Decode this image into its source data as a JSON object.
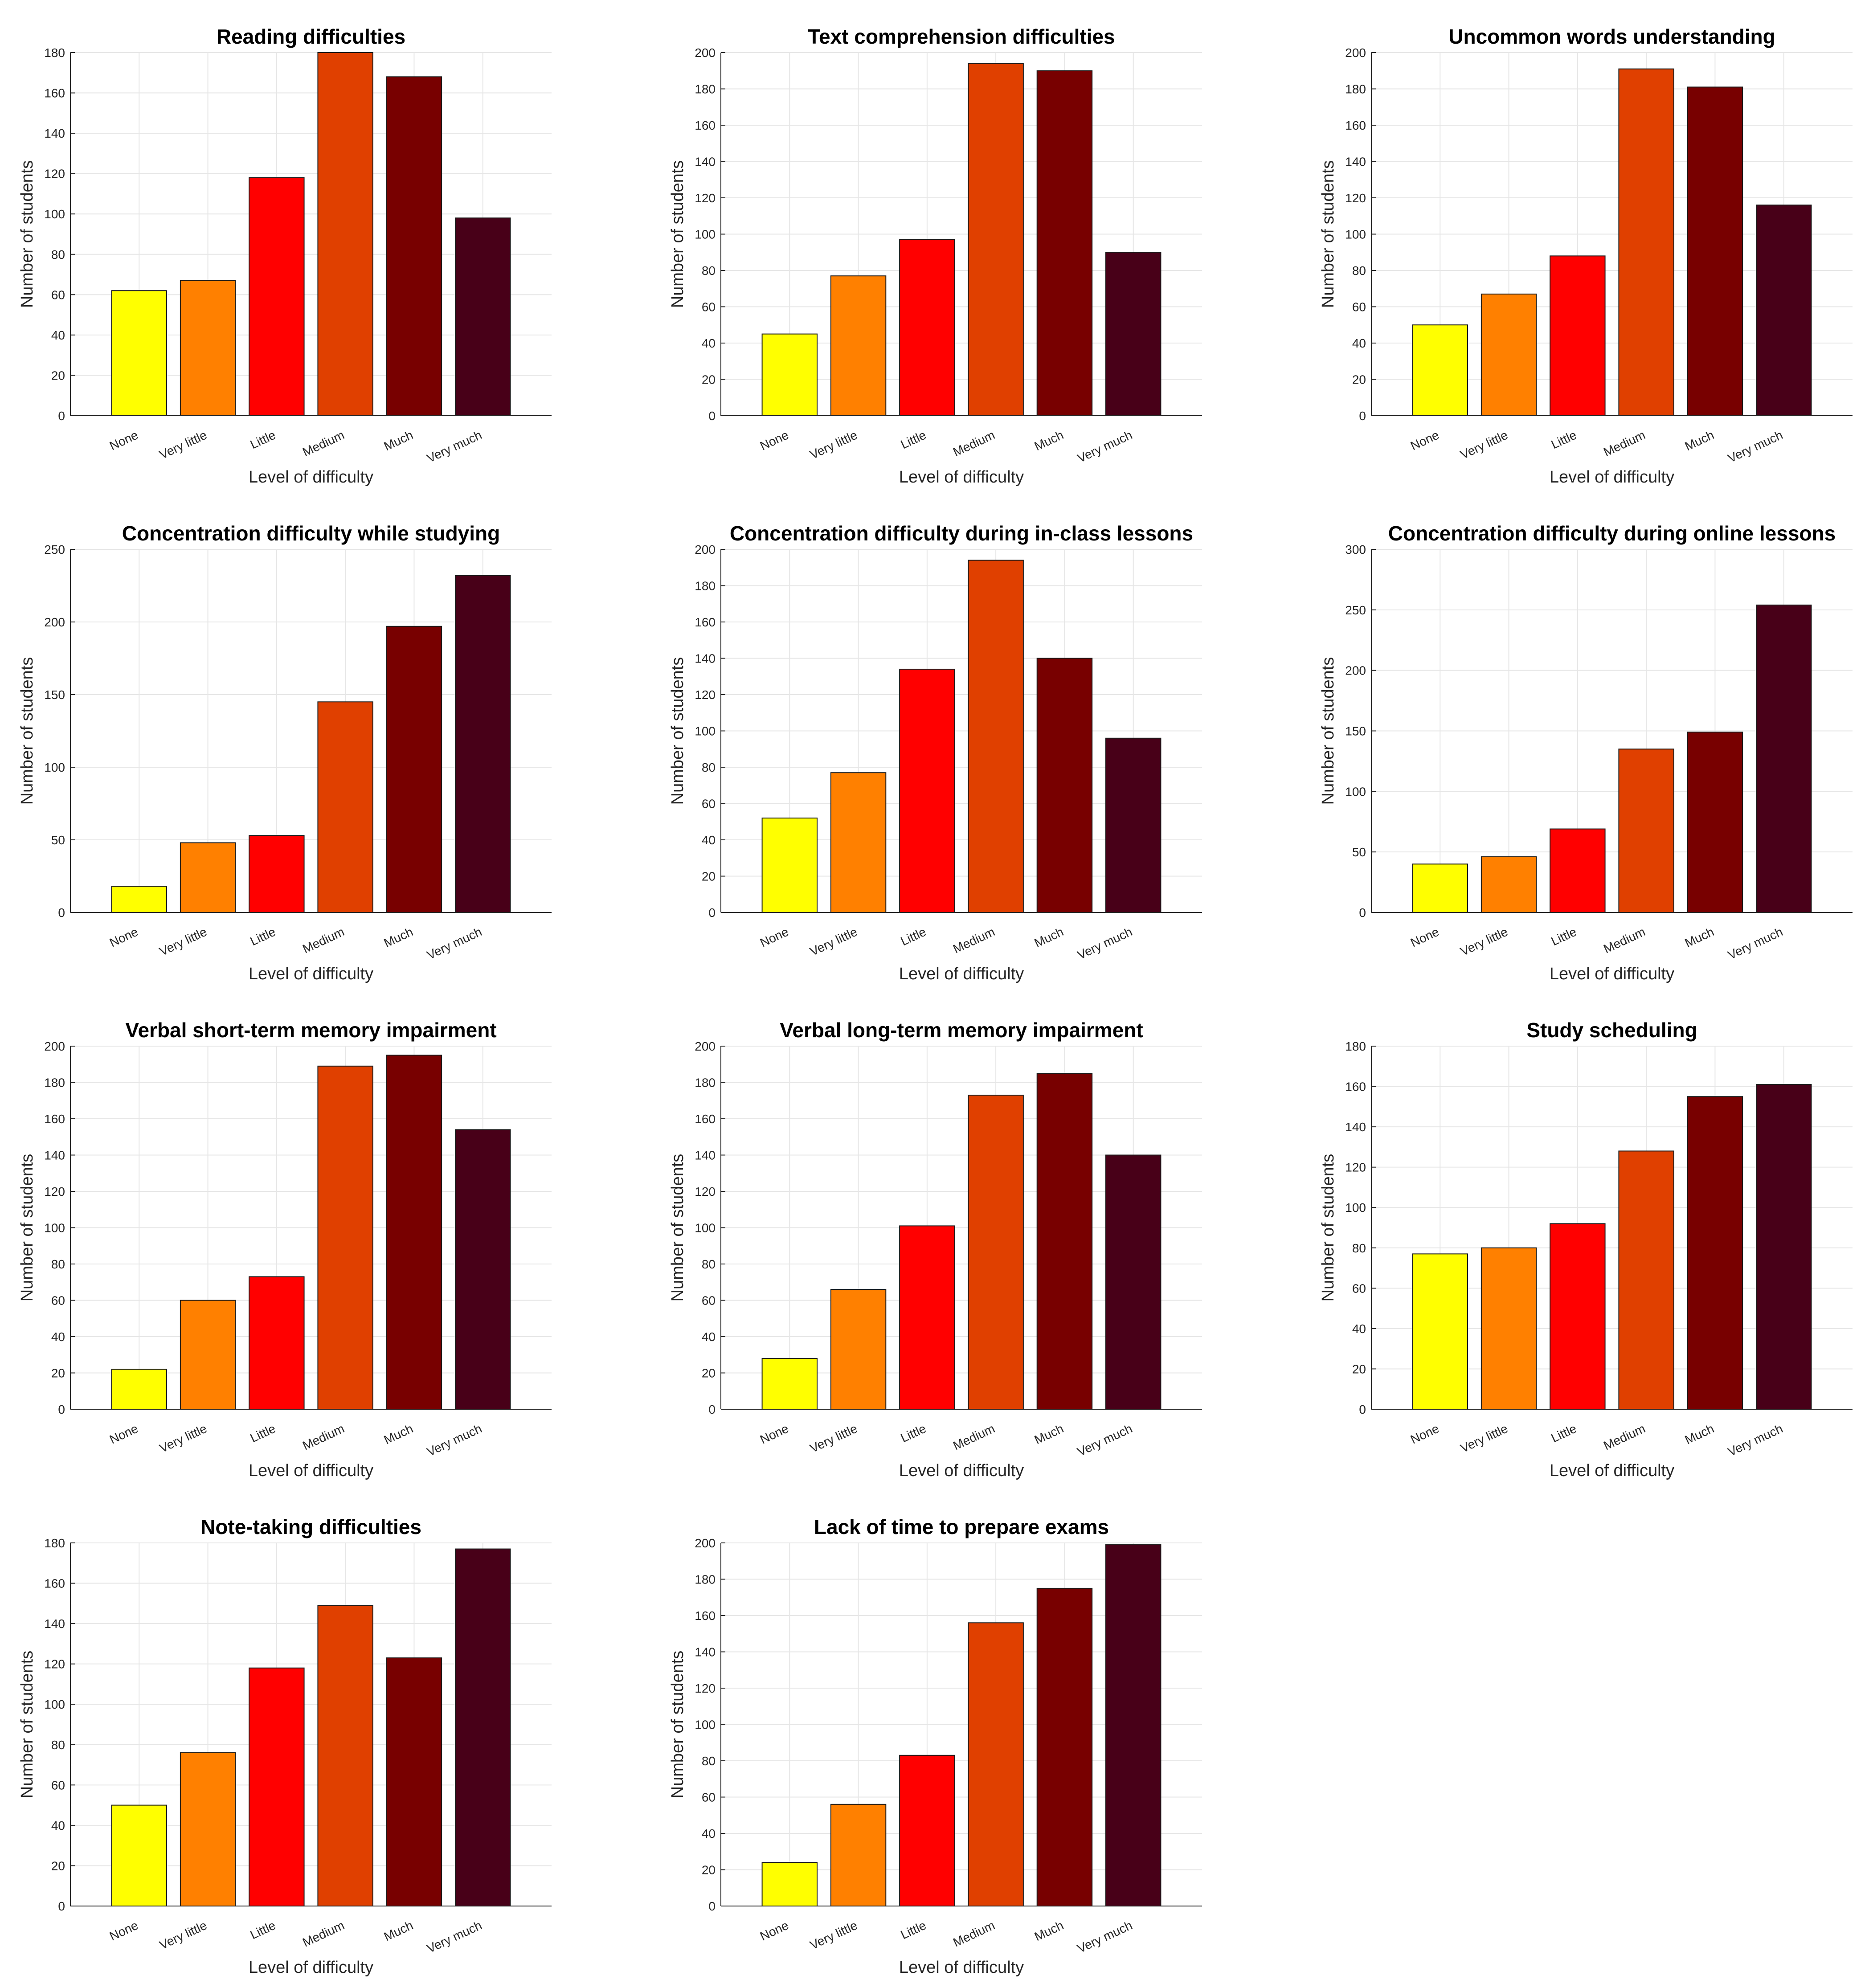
{
  "palette": [
    "#ffff00",
    "#ff8000",
    "#ff0000",
    "#e04000",
    "#780000",
    "#480018"
  ],
  "chart_data": [
    {
      "type": "bar",
      "title": "Reading difficulties",
      "xlabel": "Level of difficulty",
      "ylabel": "Number of students",
      "categories": [
        "None",
        "Very little",
        "Little",
        "Medium",
        "Much",
        "Very much"
      ],
      "values": [
        62,
        67,
        118,
        180,
        168,
        98
      ],
      "ylim": [
        0,
        180
      ],
      "yticks": [
        0,
        20,
        40,
        60,
        80,
        100,
        120,
        140,
        160,
        180
      ],
      "grid": true
    },
    {
      "type": "bar",
      "title": "Text comprehension difficulties",
      "xlabel": "Level of difficulty",
      "ylabel": "Number of students",
      "categories": [
        "None",
        "Very little",
        "Little",
        "Medium",
        "Much",
        "Very much"
      ],
      "values": [
        45,
        77,
        97,
        194,
        190,
        90
      ],
      "ylim": [
        0,
        200
      ],
      "yticks": [
        0,
        20,
        40,
        60,
        80,
        100,
        120,
        140,
        160,
        180,
        200
      ],
      "grid": true
    },
    {
      "type": "bar",
      "title": "Uncommon words understanding",
      "xlabel": "Level of difficulty",
      "ylabel": "Number of students",
      "categories": [
        "None",
        "Very little",
        "Little",
        "Medium",
        "Much",
        "Very much"
      ],
      "values": [
        50,
        67,
        88,
        191,
        181,
        116
      ],
      "ylim": [
        0,
        200
      ],
      "yticks": [
        0,
        20,
        40,
        60,
        80,
        100,
        120,
        140,
        160,
        180,
        200
      ],
      "grid": true
    },
    {
      "type": "bar",
      "title": "Concentration difficulty while studying",
      "xlabel": "Level of difficulty",
      "ylabel": "Number of students",
      "categories": [
        "None",
        "Very little",
        "Little",
        "Medium",
        "Much",
        "Very much"
      ],
      "values": [
        18,
        48,
        53,
        145,
        197,
        232
      ],
      "ylim": [
        0,
        250
      ],
      "yticks": [
        0,
        50,
        100,
        150,
        200,
        250
      ],
      "grid": true
    },
    {
      "type": "bar",
      "title": "Concentration difficulty during in-class lessons",
      "xlabel": "Level of difficulty",
      "ylabel": "Number of students",
      "categories": [
        "None",
        "Very little",
        "Little",
        "Medium",
        "Much",
        "Very much"
      ],
      "values": [
        52,
        77,
        134,
        194,
        140,
        96
      ],
      "ylim": [
        0,
        200
      ],
      "yticks": [
        0,
        20,
        40,
        60,
        80,
        100,
        120,
        140,
        160,
        180,
        200
      ],
      "grid": true
    },
    {
      "type": "bar",
      "title": "Concentration difficulty during online lessons",
      "xlabel": "Level of difficulty",
      "ylabel": "Number of students",
      "categories": [
        "None",
        "Very little",
        "Little",
        "Medium",
        "Much",
        "Very much"
      ],
      "values": [
        40,
        46,
        69,
        135,
        149,
        254
      ],
      "ylim": [
        0,
        300
      ],
      "yticks": [
        0,
        50,
        100,
        150,
        200,
        250,
        300
      ],
      "grid": true
    },
    {
      "type": "bar",
      "title": "Verbal short-term memory impairment",
      "xlabel": "Level of difficulty",
      "ylabel": "Number of students",
      "categories": [
        "None",
        "Very little",
        "Little",
        "Medium",
        "Much",
        "Very much"
      ],
      "values": [
        22,
        60,
        73,
        189,
        195,
        154
      ],
      "ylim": [
        0,
        200
      ],
      "yticks": [
        0,
        20,
        40,
        60,
        80,
        100,
        120,
        140,
        160,
        180,
        200
      ],
      "grid": true
    },
    {
      "type": "bar",
      "title": "Verbal long-term memory impairment",
      "xlabel": "Level of difficulty",
      "ylabel": "Number of students",
      "categories": [
        "None",
        "Very little",
        "Little",
        "Medium",
        "Much",
        "Very much"
      ],
      "values": [
        28,
        66,
        101,
        173,
        185,
        140
      ],
      "ylim": [
        0,
        200
      ],
      "yticks": [
        0,
        20,
        40,
        60,
        80,
        100,
        120,
        140,
        160,
        180,
        200
      ],
      "grid": true
    },
    {
      "type": "bar",
      "title": "Study scheduling",
      "xlabel": "Level of difficulty",
      "ylabel": "Number of students",
      "categories": [
        "None",
        "Very little",
        "Little",
        "Medium",
        "Much",
        "Very much"
      ],
      "values": [
        77,
        80,
        92,
        128,
        155,
        161
      ],
      "ylim": [
        0,
        180
      ],
      "yticks": [
        0,
        20,
        40,
        60,
        80,
        100,
        120,
        140,
        160,
        180
      ],
      "grid": true
    },
    {
      "type": "bar",
      "title": "Note-taking difficulties",
      "xlabel": "Level of difficulty",
      "ylabel": "Number of students",
      "categories": [
        "None",
        "Very little",
        "Little",
        "Medium",
        "Much",
        "Very much"
      ],
      "values": [
        50,
        76,
        118,
        149,
        123,
        177
      ],
      "ylim": [
        0,
        180
      ],
      "yticks": [
        0,
        20,
        40,
        60,
        80,
        100,
        120,
        140,
        160,
        180
      ],
      "grid": true
    },
    {
      "type": "bar",
      "title": "Lack of time to prepare exams",
      "xlabel": "Level of difficulty",
      "ylabel": "Number of students",
      "categories": [
        "None",
        "Very little",
        "Little",
        "Medium",
        "Much",
        "Very much"
      ],
      "values": [
        24,
        56,
        83,
        156,
        175,
        199
      ],
      "ylim": [
        0,
        200
      ],
      "yticks": [
        0,
        20,
        40,
        60,
        80,
        100,
        120,
        140,
        160,
        180,
        200
      ],
      "grid": true
    }
  ]
}
